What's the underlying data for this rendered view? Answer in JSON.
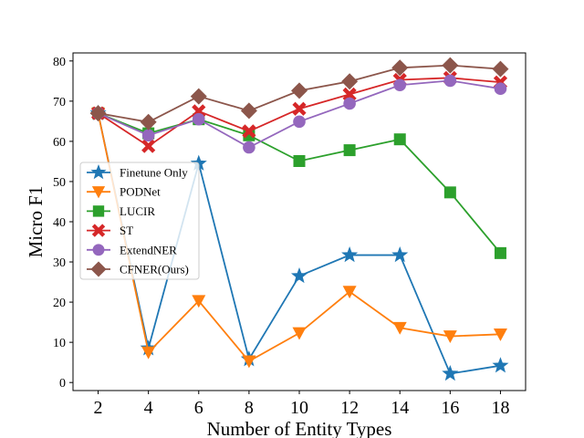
{
  "chart_data": {
    "type": "line",
    "title": "",
    "xlabel": "Number of Entity Types",
    "ylabel": "Micro F1",
    "x": [
      2,
      4,
      6,
      8,
      10,
      12,
      14,
      16,
      18
    ],
    "xlim": [
      1,
      19
    ],
    "ylim": [
      -2,
      82
    ],
    "xticks": [
      2,
      4,
      6,
      8,
      10,
      12,
      14,
      16,
      18
    ],
    "yticks": [
      0,
      10,
      20,
      30,
      40,
      50,
      60,
      70,
      80
    ],
    "grid": false,
    "legend": "center-left",
    "series": [
      {
        "name": "Finetune Only",
        "color": "#1f77b4",
        "marker": "star",
        "values": [
          67.0,
          8.5,
          54.5,
          5.8,
          26.5,
          31.7,
          31.7,
          2.2,
          4.2
        ]
      },
      {
        "name": "PODNet",
        "color": "#ff7f0e",
        "marker": "triangle-down",
        "values": [
          67.0,
          7.5,
          20.3,
          5.3,
          12.3,
          22.6,
          13.6,
          11.5,
          12.0
        ]
      },
      {
        "name": "LUCIR",
        "color": "#2ca02c",
        "marker": "square",
        "values": [
          67.0,
          62.0,
          65.5,
          61.5,
          55.1,
          57.8,
          60.5,
          47.3,
          32.2
        ]
      },
      {
        "name": "ST",
        "color": "#d62728",
        "marker": "x",
        "values": [
          67.0,
          58.8,
          67.5,
          62.5,
          68.1,
          71.7,
          75.3,
          75.8,
          74.7
        ]
      },
      {
        "name": "ExtendNER",
        "color": "#9467bd",
        "marker": "circle",
        "values": [
          67.0,
          61.5,
          65.5,
          58.5,
          64.9,
          69.4,
          74.0,
          75.1,
          73.1
        ]
      },
      {
        "name": "CFNER(Ours)",
        "color": "#8c564b",
        "marker": "diamond",
        "values": [
          67.0,
          64.8,
          71.2,
          67.6,
          72.6,
          74.9,
          78.3,
          78.9,
          78.0
        ]
      }
    ]
  }
}
